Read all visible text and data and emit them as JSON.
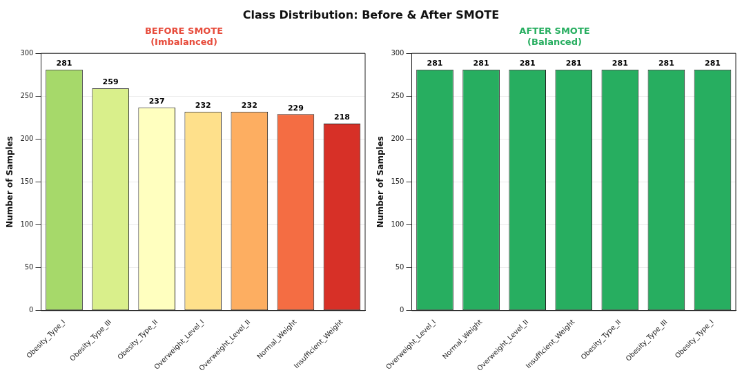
{
  "chart_data": [
    {
      "type": "bar",
      "title": "BEFORE SMOTE\n(Imbalanced)",
      "annotations": [
        "Class Distribution: Before & After SMOTE"
      ],
      "ylabel": "Number of Samples",
      "categories": [
        "Obesity_Type_I",
        "Obesity_Type_III",
        "Obesity_Type_II",
        "Overweight_Level_I",
        "Overweight_Level_II",
        "Normal_Weight",
        "Insufficient_Weight"
      ],
      "values": [
        281,
        259,
        237,
        232,
        232,
        229,
        218
      ],
      "colors": [
        "#a6d96a",
        "#d9ef8b",
        "#ffffbf",
        "#fee08b",
        "#fdae61",
        "#f46d43",
        "#d73027"
      ],
      "ylim": [
        0,
        300
      ],
      "yticks": [
        0,
        50,
        100,
        150,
        200,
        250,
        300
      ],
      "grid": "y",
      "data_labels": true
    },
    {
      "type": "bar",
      "title": "AFTER SMOTE\n(Balanced)",
      "ylabel": "Number of Samples",
      "categories": [
        "Overweight_Level_I",
        "Normal_Weight",
        "Overweight_Level_II",
        "Insufficient_Weight",
        "Obesity_Type_II",
        "Obesity_Type_III",
        "Obesity_Type_I"
      ],
      "values": [
        281,
        281,
        281,
        281,
        281,
        281,
        281
      ],
      "color": "#27ae60",
      "ylim": [
        0,
        300
      ],
      "yticks": [
        0,
        50,
        100,
        150,
        200,
        250,
        300
      ],
      "grid": "y",
      "data_labels": true
    }
  ]
}
